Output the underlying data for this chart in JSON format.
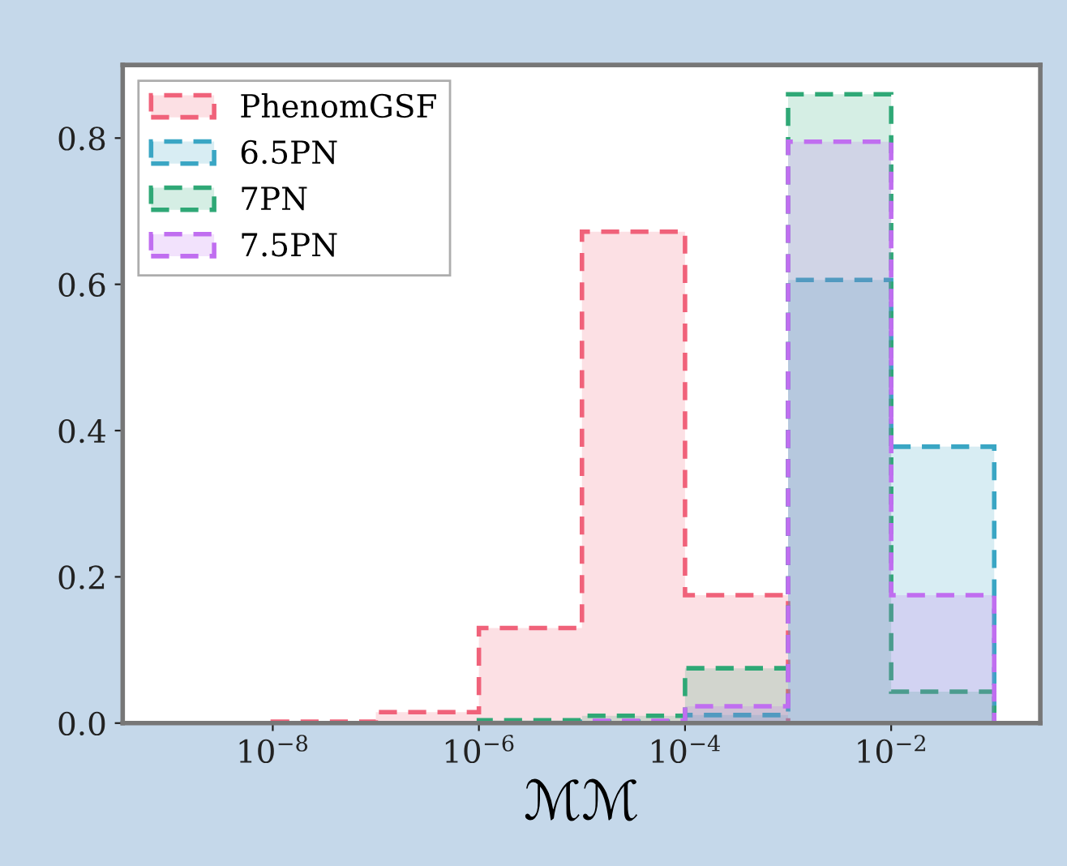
{
  "chart_data": {
    "type": "histogram",
    "xlabel": "ℳℳ",
    "bins": [
      1e-08,
      1e-07,
      1e-06,
      1e-05,
      0.0001,
      0.001,
      0.01,
      0.1
    ],
    "series": [
      {
        "name": "PhenomGSF",
        "color": "#f0627a",
        "values": [
          0.002,
          0.015,
          0.13,
          0.672,
          0.175,
          0,
          0
        ]
      },
      {
        "name": "6.5PN",
        "color": "#3aa6c4",
        "values": [
          0,
          0,
          0,
          0.002,
          0.011,
          0.606,
          0.378
        ]
      },
      {
        "name": "7PN",
        "color": "#2fa876",
        "values": [
          0,
          0,
          0.004,
          0.01,
          0.075,
          0.86,
          0.043
        ]
      },
      {
        "name": "7.5PN",
        "color": "#c06ef0",
        "values": [
          0,
          0,
          0,
          0.003,
          0.023,
          0.795,
          0.175
        ]
      }
    ],
    "log": "x",
    "xlim": [
      3.5e-10,
      0.28
    ],
    "ylim": [
      0,
      0.9
    ],
    "xticks": [
      {
        "value": 1e-08,
        "label": "10$^{−8}$"
      },
      {
        "value": 1e-06,
        "label": "10$^{−6}$"
      },
      {
        "value": 0.0001,
        "label": "10$^{−4}$"
      },
      {
        "value": 0.01,
        "label": "10$^{−2}$"
      }
    ],
    "yticks": [
      {
        "value": 0,
        "label": "0.0"
      },
      {
        "value": 0.2,
        "label": "0.2"
      },
      {
        "value": 0.4,
        "label": "0.4"
      },
      {
        "value": 0.6,
        "label": "0.6"
      },
      {
        "value": 0.8,
        "label": "0.8"
      }
    ],
    "grid": false,
    "legend": "top left",
    "line_style": "dashed"
  }
}
